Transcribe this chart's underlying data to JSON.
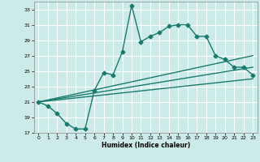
{
  "xlabel": "Humidex (Indice chaleur)",
  "bg_color": "#cceae7",
  "grid_color": "#ffffff",
  "line_color": "#1a7a6e",
  "xlim": [
    -0.5,
    23.5
  ],
  "ylim": [
    17,
    34
  ],
  "yticks": [
    17,
    19,
    21,
    23,
    25,
    27,
    29,
    31,
    33
  ],
  "xticks": [
    0,
    1,
    2,
    3,
    4,
    5,
    6,
    7,
    8,
    9,
    10,
    11,
    12,
    13,
    14,
    15,
    16,
    17,
    18,
    19,
    20,
    21,
    22,
    23
  ],
  "series1_x": [
    0,
    1,
    2,
    3,
    4,
    5,
    6,
    7,
    8,
    9,
    10,
    11,
    12,
    13,
    14,
    15,
    16,
    17,
    18,
    19,
    20,
    21,
    22,
    23
  ],
  "series1_y": [
    21.0,
    20.5,
    19.5,
    18.2,
    17.5,
    17.5,
    22.5,
    24.8,
    24.5,
    27.5,
    33.5,
    28.8,
    29.5,
    30.0,
    30.8,
    31.0,
    31.0,
    29.5,
    29.5,
    27.0,
    26.5,
    25.5,
    25.5,
    24.5
  ],
  "line2_x": [
    0,
    23
  ],
  "line2_y": [
    21.0,
    27.0
  ],
  "line3_x": [
    0,
    23
  ],
  "line3_y": [
    21.0,
    25.5
  ],
  "line4_x": [
    0,
    23
  ],
  "line4_y": [
    21.0,
    24.0
  ],
  "marker": "D",
  "marker_size": 2.5,
  "linewidth": 1.0
}
